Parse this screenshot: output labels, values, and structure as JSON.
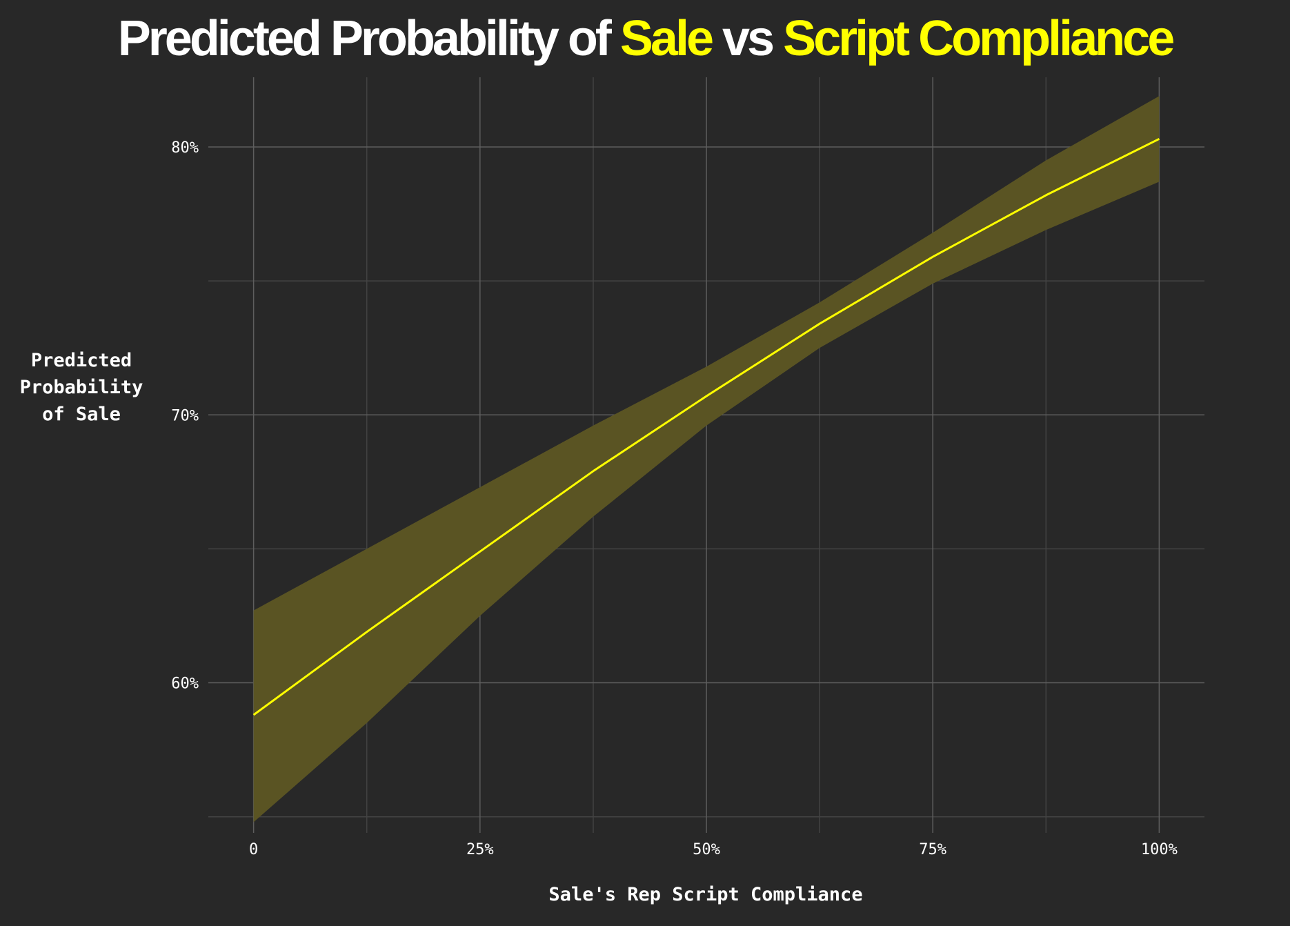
{
  "chart_data": {
    "type": "line",
    "title_parts": [
      {
        "text": "Predicted Probability of ",
        "highlight": false
      },
      {
        "text": "Sale",
        "highlight": true
      },
      {
        "text": " vs ",
        "highlight": false
      },
      {
        "text": "Script Compliance",
        "highlight": true
      }
    ],
    "xlabel": "Sale's Rep Script Compliance",
    "ylabel_lines": [
      "Predicted",
      "Probability",
      "of Sale"
    ],
    "xlim": [
      -0.05,
      1.05
    ],
    "ylim": [
      0.544,
      0.826
    ],
    "x_ticks": [
      0,
      0.25,
      0.5,
      0.75,
      1.0
    ],
    "x_tick_labels": [
      "0",
      "25%",
      "50%",
      "75%",
      "100%"
    ],
    "x_minor_ticks": [
      0.125,
      0.375,
      0.625,
      0.875
    ],
    "y_ticks": [
      0.6,
      0.7,
      0.8
    ],
    "y_tick_labels": [
      "60%",
      "70%",
      "80%"
    ],
    "y_minor_ticks": [
      0.55,
      0.65,
      0.75
    ],
    "grid": true,
    "series": [
      {
        "x": [
          0,
          0.125,
          0.25,
          0.375,
          0.5,
          0.625,
          0.75,
          0.875,
          1.0
        ],
        "y": [
          0.588,
          0.619,
          0.649,
          0.679,
          0.707,
          0.734,
          0.759,
          0.782,
          0.803
        ],
        "lower": [
          0.548,
          0.585,
          0.625,
          0.662,
          0.696,
          0.725,
          0.749,
          0.769,
          0.787
        ],
        "upper": [
          0.627,
          0.65,
          0.673,
          0.696,
          0.718,
          0.742,
          0.768,
          0.795,
          0.819
        ]
      }
    ],
    "colors": {
      "background": "#282828",
      "line": "#ffff00",
      "band": "#5a5423",
      "grid_major": "#5e5e5e",
      "grid_minor": "#434343",
      "text": "#ffffff",
      "highlight": "#ffff00"
    }
  }
}
